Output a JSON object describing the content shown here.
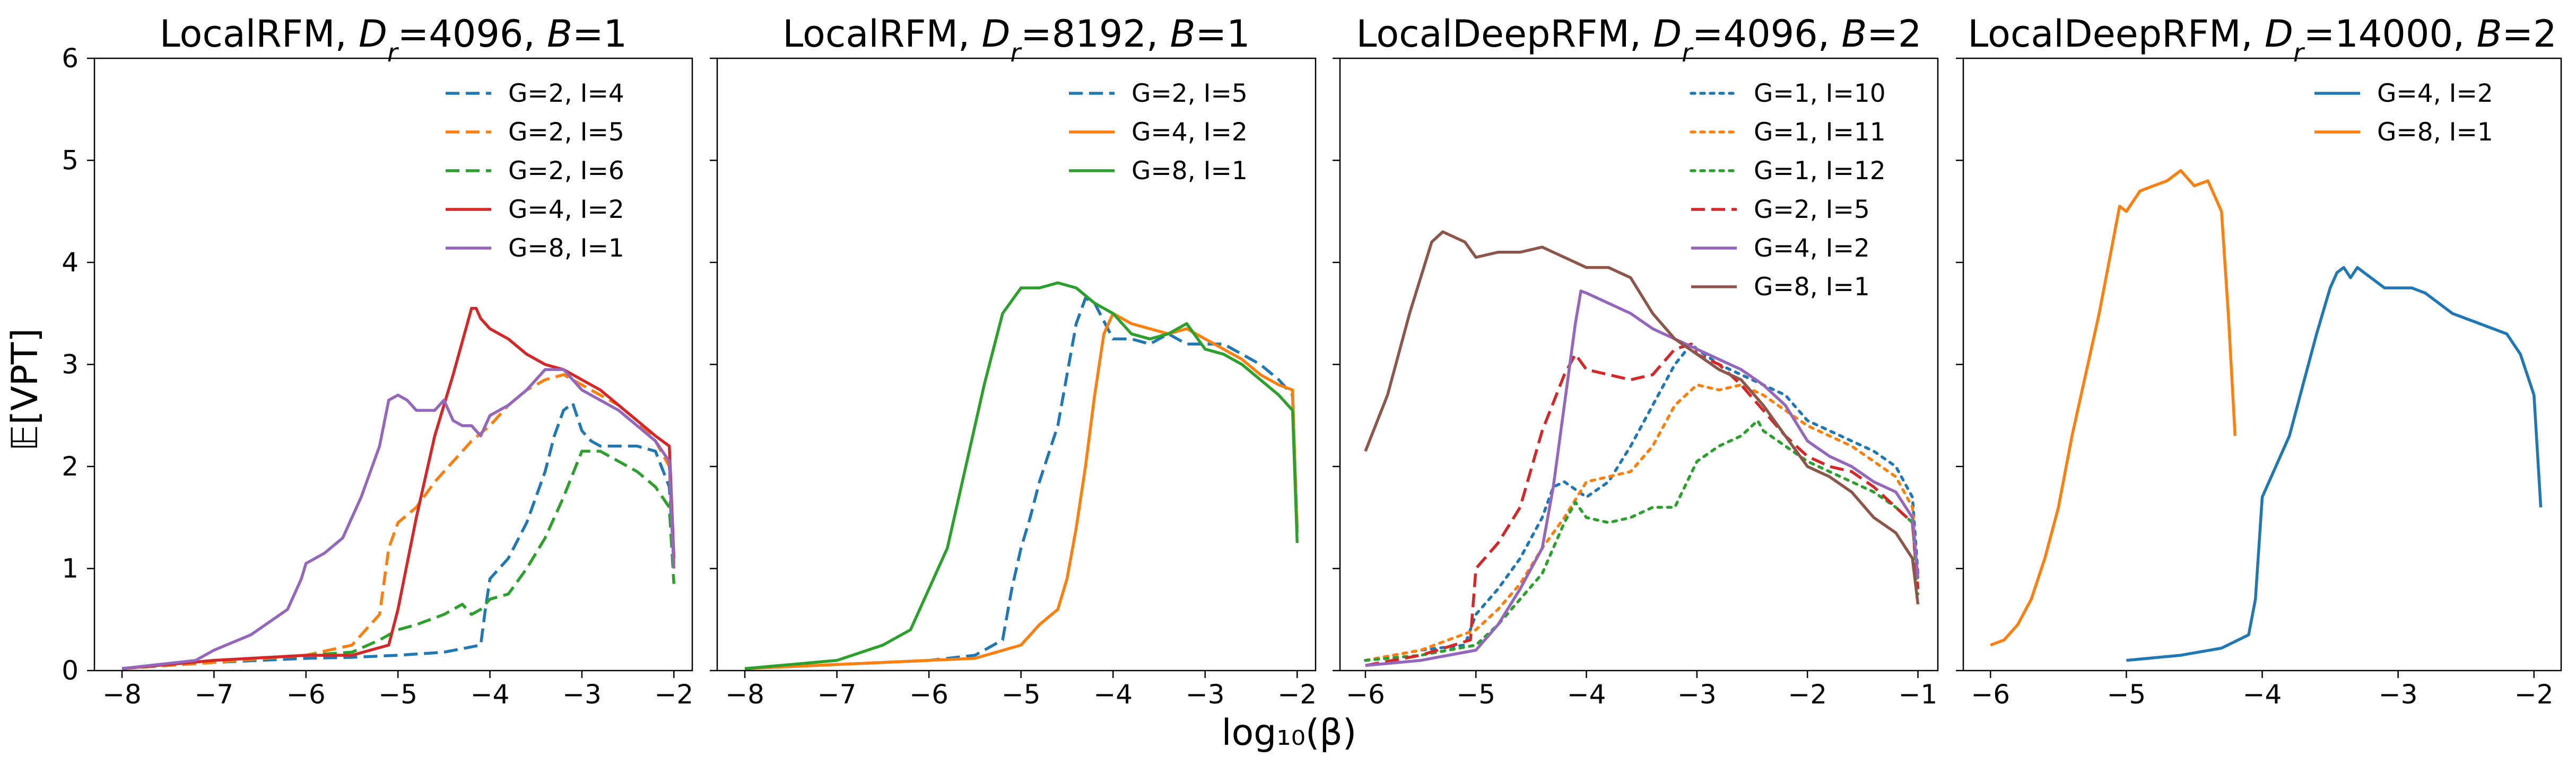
{
  "figure": {
    "ylabel_left": "𝔼[VPT]",
    "xlabel_shared": "log₁₀(β)"
  },
  "chart_data": [
    {
      "type": "line",
      "title": "LocalRFM, D_r=4096, B=1",
      "xlim": [
        -8.3,
        -1.8
      ],
      "ylim": [
        0,
        6
      ],
      "xticks": [
        -8,
        -7,
        -6,
        -5,
        -4,
        -3,
        -2
      ],
      "xtick_labels": [
        "−8",
        "−7",
        "−6",
        "−5",
        "−4",
        "−3",
        "−2"
      ],
      "yticks": [
        0,
        1,
        2,
        3,
        4,
        5,
        6
      ],
      "ytick_labels": [
        "0",
        "1",
        "2",
        "3",
        "4",
        "5",
        "6"
      ],
      "legend": "top-right",
      "series": [
        {
          "name": "G=2, I=4",
          "color": "#1f77b4",
          "style": "dashed",
          "x": [
            -8,
            -7,
            -6,
            -5.5,
            -5,
            -4.5,
            -4.1,
            -4.05,
            -4,
            -3.8,
            -3.6,
            -3.4,
            -3.3,
            -3.2,
            -3.1,
            -3,
            -2.9,
            -2.8,
            -2.6,
            -2.4,
            -2.2,
            -2.05,
            -2
          ],
          "y": [
            0.02,
            0.08,
            0.12,
            0.13,
            0.15,
            0.18,
            0.25,
            0.6,
            0.9,
            1.1,
            1.45,
            1.95,
            2.3,
            2.55,
            2.62,
            2.35,
            2.25,
            2.2,
            2.2,
            2.2,
            2.15,
            1.8,
            1.1
          ]
        },
        {
          "name": "G=2, I=5",
          "color": "#ff7f0e",
          "style": "dashed",
          "x": [
            -8,
            -7,
            -6,
            -5.5,
            -5.2,
            -5.1,
            -5,
            -4.8,
            -4.6,
            -4.4,
            -4.2,
            -4,
            -3.8,
            -3.6,
            -3.4,
            -3.2,
            -3,
            -2.8,
            -2.6,
            -2.4,
            -2.2,
            -2.05,
            -2
          ],
          "y": [
            0.02,
            0.08,
            0.15,
            0.25,
            0.55,
            1.2,
            1.45,
            1.6,
            1.85,
            2.05,
            2.25,
            2.4,
            2.6,
            2.75,
            2.85,
            2.9,
            2.8,
            2.7,
            2.6,
            2.45,
            2.25,
            2.0,
            1.05
          ]
        },
        {
          "name": "G=2, I=6",
          "color": "#2ca02c",
          "style": "dashed",
          "x": [
            -8,
            -7,
            -6,
            -5.5,
            -5.2,
            -5,
            -4.8,
            -4.5,
            -4.3,
            -4.2,
            -4.1,
            -4,
            -3.8,
            -3.6,
            -3.4,
            -3.2,
            -3,
            -2.8,
            -2.6,
            -2.4,
            -2.2,
            -2.05,
            -2
          ],
          "y": [
            0.02,
            0.1,
            0.15,
            0.18,
            0.3,
            0.4,
            0.45,
            0.55,
            0.65,
            0.55,
            0.6,
            0.7,
            0.75,
            1.0,
            1.3,
            1.7,
            2.15,
            2.15,
            2.05,
            1.95,
            1.8,
            1.6,
            0.85
          ]
        },
        {
          "name": "G=4, I=2",
          "color": "#d62728",
          "style": "solid",
          "x": [
            -8,
            -7,
            -6,
            -5.5,
            -5.1,
            -5,
            -4.8,
            -4.6,
            -4.4,
            -4.2,
            -4.15,
            -4.1,
            -4,
            -3.8,
            -3.6,
            -3.4,
            -3.2,
            -3,
            -2.8,
            -2.6,
            -2.4,
            -2.2,
            -2.05,
            -2
          ],
          "y": [
            0.02,
            0.1,
            0.15,
            0.15,
            0.25,
            0.6,
            1.5,
            2.3,
            2.9,
            3.55,
            3.55,
            3.45,
            3.35,
            3.25,
            3.1,
            3.0,
            2.95,
            2.85,
            2.75,
            2.6,
            2.45,
            2.3,
            2.2,
            1.1
          ]
        },
        {
          "name": "G=8, I=1",
          "color": "#9467bd",
          "style": "solid",
          "x": [
            -8,
            -7.2,
            -7,
            -6.6,
            -6.2,
            -6.05,
            -6,
            -5.8,
            -5.6,
            -5.4,
            -5.2,
            -5.1,
            -5,
            -4.9,
            -4.8,
            -4.6,
            -4.5,
            -4.4,
            -4.3,
            -4.2,
            -4.1,
            -4,
            -3.8,
            -3.6,
            -3.4,
            -3.2,
            -3,
            -2.8,
            -2.6,
            -2.4,
            -2.2,
            -2.05,
            -2
          ],
          "y": [
            0.02,
            0.1,
            0.2,
            0.35,
            0.6,
            0.9,
            1.05,
            1.15,
            1.3,
            1.7,
            2.2,
            2.65,
            2.7,
            2.65,
            2.55,
            2.55,
            2.65,
            2.45,
            2.4,
            2.4,
            2.3,
            2.5,
            2.6,
            2.75,
            2.95,
            2.95,
            2.75,
            2.65,
            2.55,
            2.4,
            2.25,
            2.05,
            1.0
          ]
        }
      ]
    },
    {
      "type": "line",
      "title": "LocalRFM, D_r=8192, B=1",
      "xlim": [
        -8.3,
        -1.8
      ],
      "ylim": [
        0,
        6
      ],
      "xticks": [
        -8,
        -7,
        -6,
        -5,
        -4,
        -3,
        -2
      ],
      "xtick_labels": [
        "−8",
        "−7",
        "−6",
        "−5",
        "−4",
        "−3",
        "−2"
      ],
      "yticks": [
        0,
        1,
        2,
        3,
        4,
        5,
        6
      ],
      "ytick_labels": [],
      "legend": "top-right",
      "series": [
        {
          "name": "G=2, I=5",
          "color": "#1f77b4",
          "style": "dashed",
          "x": [
            -8,
            -7,
            -6,
            -5.5,
            -5.2,
            -5.1,
            -5,
            -4.9,
            -4.8,
            -4.6,
            -4.5,
            -4.4,
            -4.3,
            -4.2,
            -4,
            -3.8,
            -3.6,
            -3.4,
            -3.2,
            -3,
            -2.8,
            -2.6,
            -2.4,
            -2.2,
            -2.05,
            -2
          ],
          "y": [
            0.02,
            0.06,
            0.1,
            0.15,
            0.3,
            0.8,
            1.2,
            1.5,
            1.85,
            2.4,
            2.9,
            3.4,
            3.65,
            3.6,
            3.25,
            3.25,
            3.2,
            3.3,
            3.2,
            3.2,
            3.2,
            3.1,
            3.0,
            2.85,
            2.7,
            1.4
          ]
        },
        {
          "name": "G=4, I=2",
          "color": "#ff7f0e",
          "style": "solid",
          "x": [
            -8,
            -7,
            -6,
            -5.5,
            -5,
            -4.8,
            -4.6,
            -4.5,
            -4.4,
            -4.3,
            -4.2,
            -4.1,
            -4,
            -3.8,
            -3.6,
            -3.4,
            -3.2,
            -3,
            -2.8,
            -2.6,
            -2.4,
            -2.2,
            -2.05,
            -2
          ],
          "y": [
            0.02,
            0.06,
            0.1,
            0.12,
            0.25,
            0.45,
            0.6,
            0.9,
            1.4,
            2.0,
            2.7,
            3.3,
            3.5,
            3.4,
            3.35,
            3.3,
            3.35,
            3.25,
            3.15,
            3.05,
            2.9,
            2.8,
            2.75,
            1.35
          ]
        },
        {
          "name": "G=8, I=1",
          "color": "#2ca02c",
          "style": "solid",
          "x": [
            -8,
            -7,
            -6.5,
            -6.2,
            -6,
            -5.8,
            -5.6,
            -5.4,
            -5.2,
            -5,
            -4.8,
            -4.6,
            -4.4,
            -4.2,
            -4,
            -3.8,
            -3.6,
            -3.4,
            -3.2,
            -3,
            -2.8,
            -2.6,
            -2.4,
            -2.2,
            -2.05,
            -2
          ],
          "y": [
            0.02,
            0.1,
            0.25,
            0.4,
            0.8,
            1.2,
            2.0,
            2.8,
            3.5,
            3.75,
            3.75,
            3.8,
            3.75,
            3.6,
            3.5,
            3.3,
            3.25,
            3.3,
            3.4,
            3.15,
            3.1,
            3.0,
            2.85,
            2.7,
            2.55,
            1.25
          ]
        }
      ]
    },
    {
      "type": "line",
      "title": "LocalDeepRFM, D_r=4096, B=2",
      "xlim": [
        -6.23,
        -0.82
      ],
      "ylim": [
        0,
        6
      ],
      "xticks": [
        -6,
        -5,
        -4,
        -3,
        -2,
        -1
      ],
      "xtick_labels": [
        "−6",
        "−5",
        "−4",
        "−3",
        "−2",
        "−1"
      ],
      "yticks": [
        0,
        1,
        2,
        3,
        4,
        5,
        6
      ],
      "ytick_labels": [],
      "legend": "top-right",
      "series": [
        {
          "name": "G=1, I=10",
          "color": "#1f77b4",
          "style": "dotted",
          "x": [
            -6,
            -5.5,
            -5.1,
            -5,
            -4.8,
            -4.6,
            -4.4,
            -4.3,
            -4.2,
            -4,
            -3.8,
            -3.6,
            -3.4,
            -3.2,
            -3.05,
            -3,
            -2.8,
            -2.6,
            -2.4,
            -2.2,
            -2,
            -1.8,
            -1.6,
            -1.4,
            -1.2,
            -1.05,
            -1
          ],
          "y": [
            0.1,
            0.2,
            0.25,
            0.55,
            0.8,
            1.1,
            1.5,
            1.8,
            1.85,
            1.7,
            1.85,
            2.2,
            2.6,
            3.0,
            3.2,
            3.15,
            3.0,
            2.9,
            2.8,
            2.7,
            2.45,
            2.35,
            2.25,
            2.15,
            2.0,
            1.7,
            0.95
          ]
        },
        {
          "name": "G=1, I=11",
          "color": "#ff7f0e",
          "style": "dotted",
          "x": [
            -6,
            -5.5,
            -5,
            -4.8,
            -4.6,
            -4.4,
            -4.2,
            -4,
            -3.8,
            -3.6,
            -3.4,
            -3.2,
            -3,
            -2.8,
            -2.6,
            -2.4,
            -2.2,
            -2,
            -1.8,
            -1.6,
            -1.4,
            -1.2,
            -1.05,
            -1
          ],
          "y": [
            0.1,
            0.2,
            0.4,
            0.6,
            0.85,
            1.2,
            1.5,
            1.85,
            1.9,
            1.95,
            2.2,
            2.6,
            2.8,
            2.75,
            2.8,
            2.7,
            2.55,
            2.4,
            2.3,
            2.2,
            2.05,
            1.9,
            1.6,
            0.8
          ]
        },
        {
          "name": "G=1, I=12",
          "color": "#2ca02c",
          "style": "dotted",
          "x": [
            -6,
            -5.5,
            -5,
            -4.8,
            -4.6,
            -4.4,
            -4.2,
            -4.1,
            -4,
            -3.8,
            -3.6,
            -3.4,
            -3.2,
            -3,
            -2.8,
            -2.6,
            -2.45,
            -2.4,
            -2.2,
            -2,
            -1.8,
            -1.6,
            -1.4,
            -1.2,
            -1.05,
            -1
          ],
          "y": [
            0.1,
            0.15,
            0.25,
            0.45,
            0.7,
            0.95,
            1.45,
            1.65,
            1.5,
            1.45,
            1.5,
            1.6,
            1.6,
            2.05,
            2.2,
            2.3,
            2.45,
            2.35,
            2.2,
            2.05,
            1.95,
            1.85,
            1.75,
            1.6,
            1.45,
            0.75
          ]
        },
        {
          "name": "G=2, I=5",
          "color": "#d62728",
          "style": "dashed",
          "x": [
            -6,
            -5.5,
            -5.05,
            -5,
            -4.8,
            -4.6,
            -4.4,
            -4.2,
            -4.1,
            -4,
            -3.8,
            -3.6,
            -3.4,
            -3.2,
            -3.05,
            -3,
            -2.8,
            -2.6,
            -2.4,
            -2.2,
            -2,
            -1.8,
            -1.6,
            -1.4,
            -1.2,
            -1.05,
            -1
          ],
          "y": [
            0.05,
            0.15,
            0.3,
            1.0,
            1.25,
            1.6,
            2.35,
            2.9,
            3.1,
            2.95,
            2.9,
            2.85,
            2.9,
            3.15,
            3.2,
            3.1,
            3.0,
            2.8,
            2.55,
            2.3,
            2.1,
            2.0,
            1.95,
            1.8,
            1.6,
            1.45,
            0.8
          ]
        },
        {
          "name": "G=4, I=2",
          "color": "#9467bd",
          "style": "solid",
          "x": [
            -6,
            -5.5,
            -5,
            -4.8,
            -4.6,
            -4.4,
            -4.3,
            -4.2,
            -4.1,
            -4.05,
            -4,
            -3.8,
            -3.6,
            -3.4,
            -3.2,
            -3,
            -2.8,
            -2.6,
            -2.4,
            -2.2,
            -2,
            -1.8,
            -1.6,
            -1.4,
            -1.2,
            -1.05,
            -1
          ],
          "y": [
            0.05,
            0.1,
            0.2,
            0.45,
            0.8,
            1.2,
            1.8,
            2.6,
            3.4,
            3.72,
            3.7,
            3.6,
            3.5,
            3.35,
            3.25,
            3.15,
            3.05,
            2.95,
            2.8,
            2.6,
            2.25,
            2.1,
            2.0,
            1.85,
            1.75,
            1.5,
            0.9
          ]
        },
        {
          "name": "G=8, I=1",
          "color": "#8c564b",
          "style": "solid",
          "x": [
            -6,
            -5.8,
            -5.6,
            -5.4,
            -5.3,
            -5.2,
            -5.1,
            -5,
            -4.8,
            -4.6,
            -4.4,
            -4.2,
            -4,
            -3.8,
            -3.6,
            -3.4,
            -3.2,
            -3,
            -2.8,
            -2.6,
            -2.4,
            -2.2,
            -2,
            -1.8,
            -1.6,
            -1.4,
            -1.2,
            -1.05,
            -1
          ],
          "y": [
            2.15,
            2.7,
            3.5,
            4.2,
            4.3,
            4.25,
            4.2,
            4.05,
            4.1,
            4.1,
            4.15,
            4.05,
            3.95,
            3.95,
            3.85,
            3.5,
            3.25,
            3.1,
            2.95,
            2.85,
            2.6,
            2.3,
            2.0,
            1.9,
            1.75,
            1.5,
            1.35,
            1.1,
            0.65
          ]
        }
      ]
    },
    {
      "type": "line",
      "title": "LocalDeepRFM, D_r=14000, B=2",
      "xlim": [
        -6.2,
        -1.8
      ],
      "ylim": [
        0,
        6
      ],
      "xticks": [
        -6,
        -5,
        -4,
        -3,
        -2
      ],
      "xtick_labels": [
        "−6",
        "−5",
        "−4",
        "−3",
        "−2"
      ],
      "yticks": [
        0,
        1,
        2,
        3,
        4,
        5,
        6
      ],
      "ytick_labels": [],
      "legend": "top-right",
      "series": [
        {
          "name": "G=4, I=2",
          "color": "#1f77b4",
          "style": "solid",
          "x": [
            -5,
            -4.6,
            -4.3,
            -4.1,
            -4.05,
            -4,
            -3.9,
            -3.8,
            -3.7,
            -3.6,
            -3.5,
            -3.45,
            -3.4,
            -3.35,
            -3.3,
            -3.25,
            -3.2,
            -3.15,
            -3.1,
            -3.0,
            -2.9,
            -2.8,
            -2.6,
            -2.4,
            -2.2,
            -2.1,
            -2.0,
            -1.95
          ],
          "y": [
            0.1,
            0.15,
            0.22,
            0.35,
            0.7,
            1.7,
            2.0,
            2.3,
            2.8,
            3.3,
            3.75,
            3.9,
            3.95,
            3.85,
            3.95,
            3.9,
            3.85,
            3.8,
            3.75,
            3.75,
            3.75,
            3.7,
            3.5,
            3.4,
            3.3,
            3.1,
            2.7,
            1.6
          ]
        },
        {
          "name": "G=8, I=1",
          "color": "#ff7f0e",
          "style": "solid",
          "x": [
            -6,
            -5.9,
            -5.8,
            -5.7,
            -5.6,
            -5.5,
            -5.4,
            -5.3,
            -5.2,
            -5.1,
            -5.05,
            -5,
            -4.9,
            -4.8,
            -4.7,
            -4.6,
            -4.5,
            -4.4,
            -4.35,
            -4.3,
            -4.25,
            -4.2
          ],
          "y": [
            0.25,
            0.3,
            0.45,
            0.7,
            1.1,
            1.6,
            2.3,
            2.9,
            3.5,
            4.2,
            4.55,
            4.5,
            4.7,
            4.75,
            4.8,
            4.9,
            4.75,
            4.8,
            4.65,
            4.5,
            3.5,
            2.3
          ]
        }
      ]
    }
  ]
}
